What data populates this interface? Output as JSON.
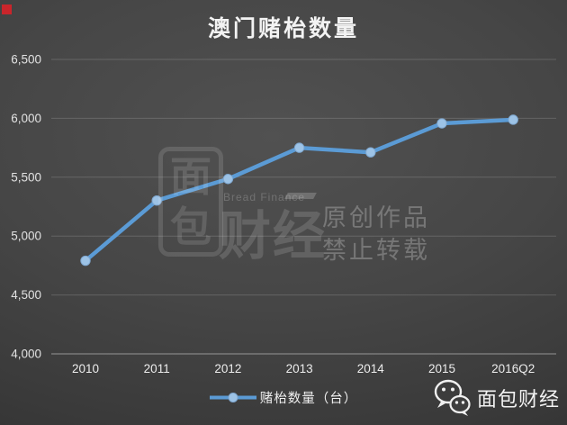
{
  "branding": {
    "corner_mark_color": "#c9252b",
    "watermark": {
      "logo_char_top": "面",
      "logo_char_bottom": "包",
      "brand_en": "Bread Finance",
      "brand_cn_large": "财经",
      "notice_line1": "原创作品",
      "notice_line2": "禁止转载"
    },
    "footer": {
      "account_name": "面包财经"
    }
  },
  "chart_data": {
    "type": "line",
    "title": "澳门赌枱数量",
    "categories": [
      "2010",
      "2011",
      "2012",
      "2013",
      "2014",
      "2015",
      "2016Q2"
    ],
    "series": [
      {
        "name": "赌枱数量（台）",
        "values": [
          4791,
          5302,
          5485,
          5750,
          5711,
          5957,
          5988
        ],
        "color": "#5b9bd5",
        "marker_color": "#9dc3e6",
        "marker_stroke": "#7fa8d1"
      }
    ],
    "xlabel": "",
    "ylabel": "",
    "ylim": [
      4000,
      6500
    ],
    "ytick_step": 500,
    "ytick_labels": [
      "4,000",
      "4,500",
      "5,000",
      "5,500",
      "6,000",
      "6,500"
    ],
    "grid": true,
    "legend_position": "bottom"
  }
}
